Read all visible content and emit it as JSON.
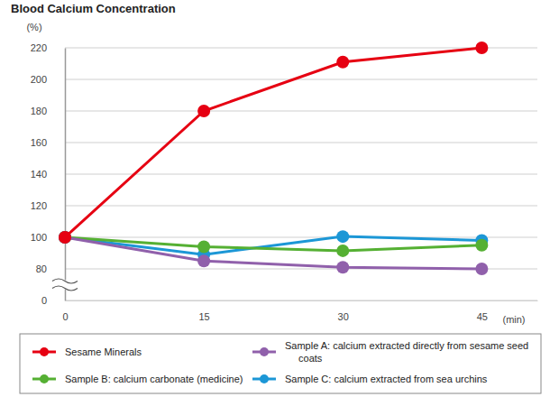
{
  "chart_data": {
    "type": "line",
    "title": "Blood Calcium Concentration",
    "y_label": "(%)",
    "x_label": "(min)",
    "x": [
      0,
      15,
      30,
      45
    ],
    "xlim": [
      0,
      51
    ],
    "xticks": [
      0,
      15,
      30,
      45
    ],
    "ylim": [
      0,
      220
    ],
    "yticks": [
      0,
      80,
      100,
      120,
      140,
      160,
      180,
      200,
      220
    ],
    "grid": true,
    "legend": "bottom",
    "marker": "circle",
    "series": [
      {
        "name": "Sesame Minerals",
        "color": "#e60012",
        "values": [
          100,
          180,
          211,
          220
        ]
      },
      {
        "name": "Sample A: calcium extracted directly from sesame seed coats",
        "color": "#9060ab",
        "values": [
          100,
          85,
          81,
          80
        ]
      },
      {
        "name": "Sample B: calcium carbonate (medicine)",
        "color": "#55b033",
        "values": [
          100,
          94,
          91.5,
          95
        ]
      },
      {
        "name": "Sample C: calcium extracted from sea urchins",
        "color": "#1c97d6",
        "values": [
          100,
          89,
          100.5,
          98
        ]
      }
    ]
  }
}
